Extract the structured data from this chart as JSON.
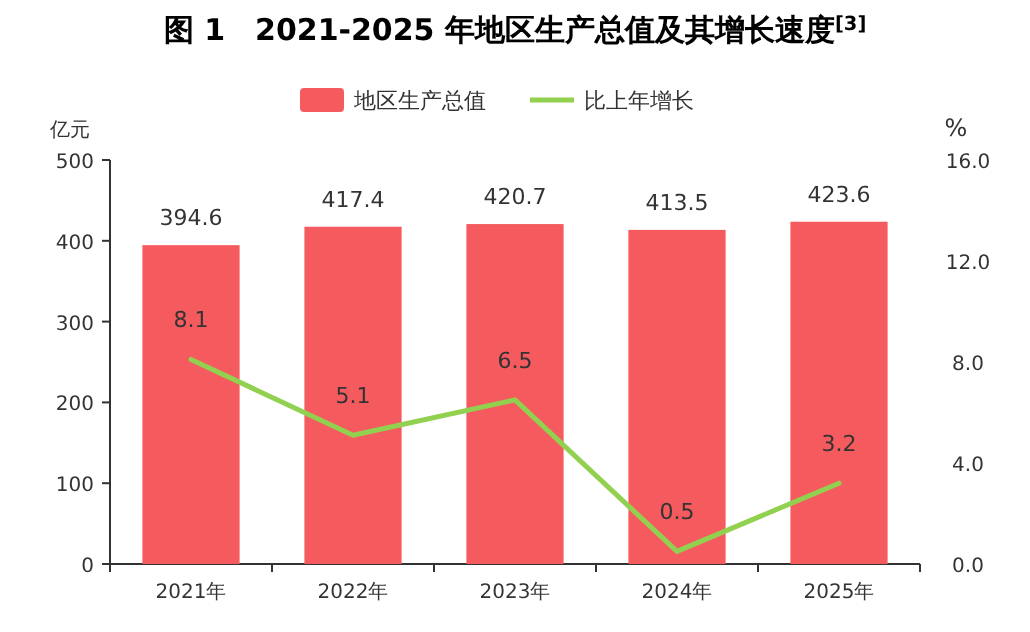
{
  "chart_data": {
    "type": "bar",
    "title": "图 1　2021-2025 年地区生产总值及其增长速度$^{[3]}$",
    "ylabel": "亿元",
    "y2label": "%",
    "categories": [
      "2021年",
      "2022年",
      "2023年",
      "2024年",
      "2025年"
    ],
    "series": [
      {
        "name": "地区生产总值",
        "color": "#f45a5e",
        "values": [
          394.6,
          417.4,
          420.7,
          413.5,
          423.6
        ]
      },
      {
        "name": "比上年增长",
        "type": "line",
        "axis": "y2",
        "color": "#92d050",
        "marker": "none",
        "values": [
          8.1,
          5.1,
          6.5,
          0.5,
          3.2
        ]
      }
    ],
    "ylim": [
      0,
      500
    ],
    "yticks": [
      0,
      100,
      200,
      300,
      400,
      500
    ],
    "y2lim": [
      0,
      16
    ],
    "y2ticks": [
      {
        "value": 0,
        "label": "0.0"
      },
      {
        "value": 4,
        "label": "4.0"
      },
      {
        "value": 8,
        "label": "8.0"
      },
      {
        "value": 12,
        "label": "12.0"
      },
      {
        "value": 16,
        "label": "16.0"
      }
    ],
    "data_labels": true,
    "legend": "top",
    "grid": false
  }
}
